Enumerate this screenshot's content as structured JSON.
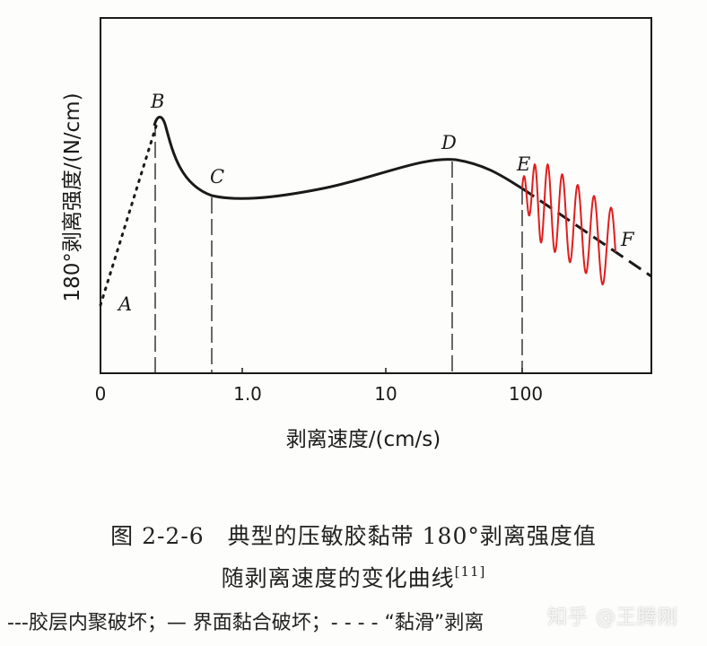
{
  "chart_data": {
    "type": "line",
    "xlabel": "剥离速度/(cm/s)",
    "ylabel": "180°剥离强度/(N/cm)",
    "x_ticks": [
      "0",
      "1.0",
      "10",
      "100"
    ],
    "x_scale": "log",
    "point_labels": [
      "A",
      "B",
      "C",
      "D",
      "E",
      "F"
    ],
    "segments": [
      {
        "from": "A",
        "to": "B",
        "style": "dotted",
        "meaning": "胶层内聚破坏"
      },
      {
        "from": "B",
        "to": "E",
        "style": "solid",
        "meaning": "界面黏合破坏"
      },
      {
        "from": "E",
        "to": "F",
        "style": "dashed",
        "meaning": "黏滑"
      },
      {
        "from": "E",
        "to": "F",
        "style": "oscillation",
        "color": "#e01e1e"
      }
    ],
    "vertical_markers_at": [
      "B",
      "C",
      "D",
      "E"
    ],
    "grid": false
  },
  "caption": {
    "line1": "图 2-2-6　典型的压敏胶黏带 180°剥离强度值",
    "line2": "随剥离速度的变化曲线",
    "line2_ref": "[11]"
  },
  "legend_text": "---胶层内聚破坏；— 界面黏合破坏；- - - - “黏滑”剥离",
  "watermark": "知乎 @王腾刚",
  "colors": {
    "curve": "#1a1a1a",
    "oscillation": "#e01e1e"
  }
}
